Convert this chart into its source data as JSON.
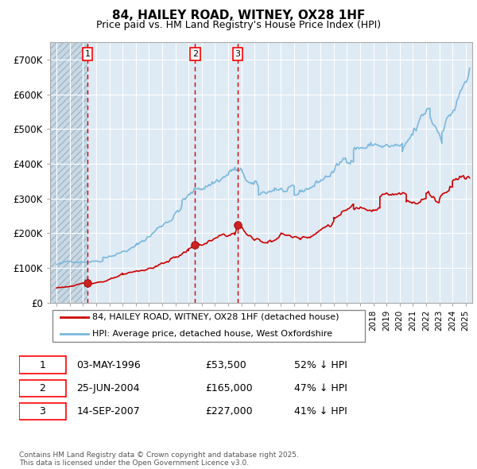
{
  "title": "84, HAILEY ROAD, WITNEY, OX28 1HF",
  "subtitle": "Price paid vs. HM Land Registry's House Price Index (HPI)",
  "ylim": [
    0,
    750000
  ],
  "yticks": [
    0,
    100000,
    200000,
    300000,
    400000,
    500000,
    600000,
    700000
  ],
  "ytick_labels": [
    "£0",
    "£100K",
    "£200K",
    "£300K",
    "£400K",
    "£500K",
    "£600K",
    "£700K"
  ],
  "hpi_color": "#7ab8dd",
  "paid_color": "#cc0000",
  "legend_paid_label": "84, HAILEY ROAD, WITNEY, OX28 1HF (detached house)",
  "legend_hpi_label": "HPI: Average price, detached house, West Oxfordshire",
  "transactions": [
    {
      "num": 1,
      "date": "03-MAY-1996",
      "price": 53500,
      "pct": "52% ↓ HPI",
      "x_year": 1996.34
    },
    {
      "num": 2,
      "date": "25-JUN-2004",
      "price": 165000,
      "pct": "47% ↓ HPI",
      "x_year": 2004.48
    },
    {
      "num": 3,
      "date": "14-SEP-2007",
      "price": 227000,
      "pct": "41% ↓ HPI",
      "x_year": 2007.71
    }
  ],
  "footer": "Contains HM Land Registry data © Crown copyright and database right 2025.\nThis data is licensed under the Open Government Licence v3.0.",
  "xlim_left": 1993.5,
  "xlim_right": 2025.5,
  "bg_plot_color": "#deeaf4",
  "hatch_end": 1996.34,
  "hatch_color": "#c0ccd8"
}
